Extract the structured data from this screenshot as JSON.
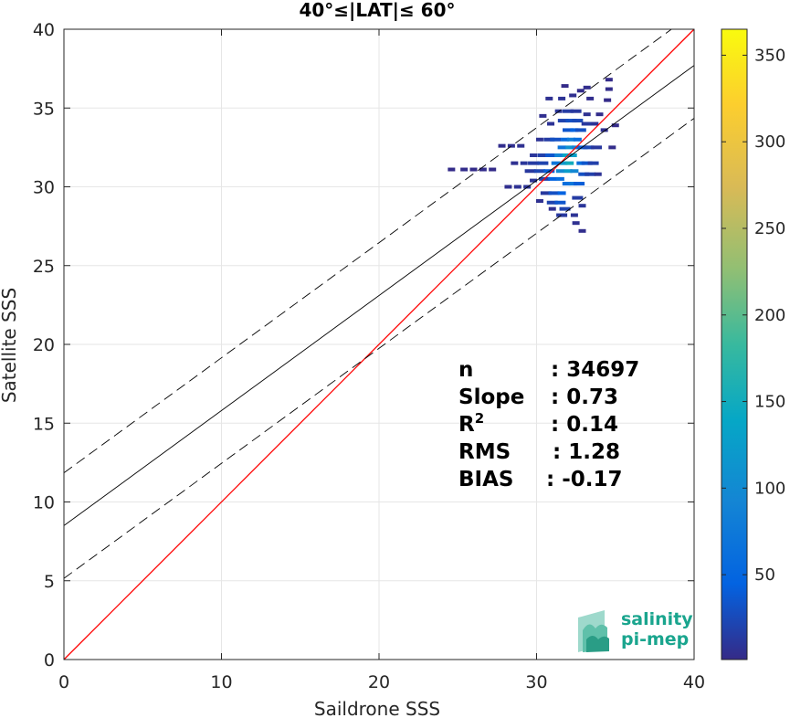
{
  "chart_data": {
    "type": "scatter",
    "title": "40°≤|LAT|≤ 60°",
    "xlabel": "Saildrone SSS",
    "ylabel": "Satellite SSS",
    "xlim": [
      0,
      40
    ],
    "ylim": [
      0,
      40
    ],
    "xticks": [
      0,
      10,
      20,
      30,
      40
    ],
    "yticks": [
      0,
      5,
      10,
      15,
      20,
      25,
      30,
      35,
      40
    ],
    "grid": true,
    "colorbar": {
      "ticks": [
        50,
        100,
        150,
        200,
        250,
        300,
        350
      ],
      "range": [
        1,
        365
      ],
      "colormap": "parula"
    },
    "lines": [
      {
        "role": "one-to-one",
        "color": "#ff0000",
        "style": "solid",
        "intercept": 0,
        "slope": 1
      },
      {
        "role": "regression",
        "color": "#000000",
        "style": "solid",
        "intercept": 8.5,
        "slope": 0.73
      },
      {
        "role": "upper-bound",
        "color": "#000000",
        "style": "dashed",
        "intercept": 11.85,
        "slope": 0.73
      },
      {
        "role": "lower-bound",
        "color": "#000000",
        "style": "dashed",
        "intercept": 5.15,
        "slope": 0.73
      }
    ],
    "density_cells": [
      [
        24.6,
        31.1,
        2
      ],
      [
        25.4,
        31.1,
        3
      ],
      [
        26.0,
        31.1,
        2
      ],
      [
        26.6,
        31.1,
        3
      ],
      [
        27.2,
        31.1,
        2
      ],
      [
        27.8,
        32.6,
        4
      ],
      [
        28.4,
        32.6,
        5
      ],
      [
        29.0,
        32.6,
        6
      ],
      [
        28.2,
        30.0,
        5
      ],
      [
        28.8,
        30.0,
        7
      ],
      [
        29.4,
        30.0,
        9
      ],
      [
        28.6,
        31.5,
        6
      ],
      [
        29.2,
        31.5,
        10
      ],
      [
        29.8,
        31.5,
        14
      ],
      [
        30.4,
        31.5,
        20
      ],
      [
        29.6,
        31.0,
        12
      ],
      [
        30.2,
        31.0,
        22
      ],
      [
        30.8,
        31.0,
        40
      ],
      [
        29.8,
        32.0,
        10
      ],
      [
        30.4,
        32.0,
        18
      ],
      [
        30.9,
        32.0,
        35
      ],
      [
        30.2,
        33.0,
        8
      ],
      [
        30.8,
        33.0,
        15
      ],
      [
        31.2,
        33.0,
        30
      ],
      [
        30.5,
        30.5,
        18
      ],
      [
        31.0,
        30.5,
        45
      ],
      [
        31.5,
        30.5,
        60
      ],
      [
        30.6,
        29.6,
        12
      ],
      [
        31.1,
        29.6,
        30
      ],
      [
        31.6,
        29.6,
        45
      ],
      [
        31.0,
        29.0,
        20
      ],
      [
        31.5,
        29.0,
        35
      ],
      [
        31.8,
        28.6,
        20
      ],
      [
        31.6,
        28.2,
        12
      ],
      [
        32.4,
        28.2,
        8
      ],
      [
        31.2,
        31.5,
        70
      ],
      [
        31.7,
        31.5,
        120
      ],
      [
        32.1,
        31.5,
        150
      ],
      [
        31.4,
        32.0,
        90
      ],
      [
        31.9,
        32.0,
        140
      ],
      [
        32.3,
        32.0,
        130
      ],
      [
        31.5,
        31.0,
        100
      ],
      [
        32.0,
        31.0,
        125
      ],
      [
        32.4,
        31.0,
        95
      ],
      [
        31.6,
        32.5,
        70
      ],
      [
        32.1,
        32.5,
        110
      ],
      [
        32.5,
        32.5,
        85
      ],
      [
        31.8,
        33.0,
        55
      ],
      [
        32.2,
        33.0,
        80
      ],
      [
        32.6,
        33.0,
        60
      ],
      [
        31.9,
        30.2,
        60
      ],
      [
        32.3,
        30.2,
        70
      ],
      [
        32.7,
        30.2,
        40
      ],
      [
        32.0,
        33.6,
        35
      ],
      [
        32.4,
        33.6,
        45
      ],
      [
        32.8,
        33.6,
        30
      ],
      [
        31.7,
        34.2,
        20
      ],
      [
        32.2,
        34.2,
        30
      ],
      [
        32.6,
        34.2,
        25
      ],
      [
        31.4,
        34.8,
        10
      ],
      [
        32.0,
        34.8,
        15
      ],
      [
        32.5,
        34.8,
        12
      ],
      [
        32.8,
        31.5,
        60
      ],
      [
        33.2,
        31.5,
        35
      ],
      [
        33.6,
        31.5,
        18
      ],
      [
        32.9,
        32.5,
        40
      ],
      [
        33.3,
        32.5,
        25
      ],
      [
        33.8,
        32.5,
        12
      ],
      [
        33.0,
        30.8,
        30
      ],
      [
        33.4,
        30.8,
        18
      ],
      [
        33.9,
        30.8,
        8
      ],
      [
        33.2,
        34.0,
        12
      ],
      [
        33.7,
        34.0,
        8
      ],
      [
        34.3,
        33.6,
        5
      ],
      [
        30.8,
        35.6,
        6
      ],
      [
        31.6,
        35.6,
        8
      ],
      [
        32.3,
        35.8,
        5
      ],
      [
        33.2,
        34.6,
        6
      ],
      [
        32.6,
        29.3,
        15
      ],
      [
        32.9,
        28.8,
        10
      ],
      [
        32.5,
        27.7,
        6
      ],
      [
        32.9,
        27.2,
        4
      ],
      [
        31.0,
        28.6,
        5
      ],
      [
        30.2,
        29.1,
        6
      ],
      [
        29.8,
        30.4,
        8
      ],
      [
        34.0,
        34.6,
        3
      ],
      [
        34.5,
        35.5,
        2
      ],
      [
        34.6,
        36.2,
        3
      ],
      [
        34.6,
        36.8,
        2
      ],
      [
        33.4,
        35.6,
        4
      ],
      [
        32.8,
        36.1,
        3
      ],
      [
        31.8,
        36.4,
        2
      ],
      [
        33.2,
        36.3,
        4
      ],
      [
        34.8,
        32.5,
        3
      ],
      [
        35.0,
        33.9,
        2
      ],
      [
        30.4,
        34.5,
        5
      ],
      [
        30.9,
        34.0,
        8
      ]
    ],
    "stats": [
      {
        "label": "n",
        "value": ": 34697"
      },
      {
        "label": "Slope",
        "value": ": 0.73"
      },
      {
        "label": "R",
        "sup": "2",
        "value": ": 0.14"
      },
      {
        "label": "RMS",
        "value": ": 1.28"
      },
      {
        "label": "BIAS",
        "value": ": -0.17"
      }
    ]
  },
  "logo": {
    "line1": "salinity",
    "line2": "pi-mep"
  },
  "colors": {
    "one_to_one": "#ff0000",
    "regression": "#000000",
    "grid": "#e6e6e6",
    "logo": "#1aa58e"
  }
}
